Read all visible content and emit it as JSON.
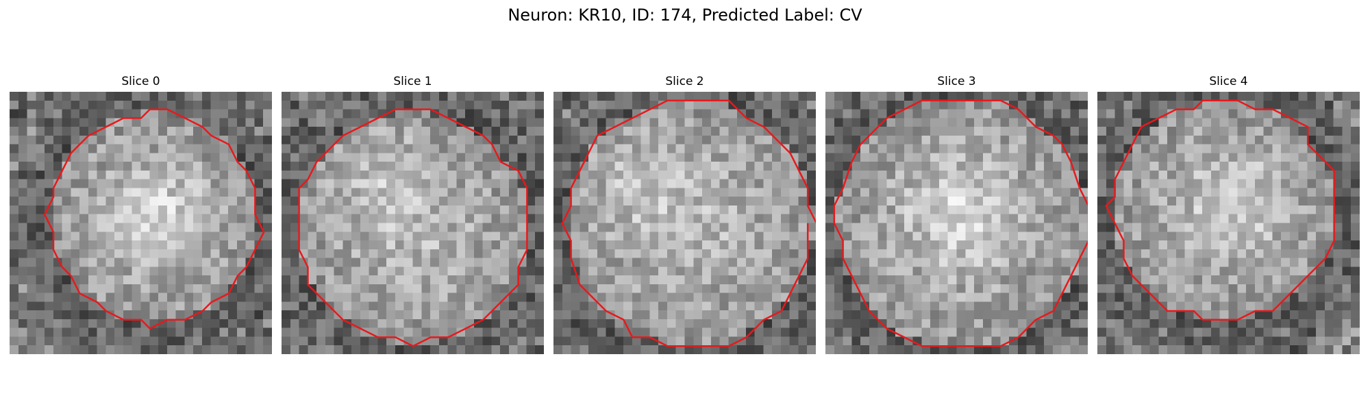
{
  "figure": {
    "title": "Neuron: KR10, ID: 174, Predicted Label: CV",
    "contour_color": "#e8191c",
    "image_colormap": "gray"
  },
  "panels": [
    {
      "title": "Slice 0",
      "seed": 11,
      "center": [
        0.55,
        0.48
      ],
      "radius": 0.4,
      "bright_blob": [
        0.55,
        0.45
      ]
    },
    {
      "title": "Slice 1",
      "seed": 23,
      "center": [
        0.5,
        0.52
      ],
      "radius": 0.44,
      "bright_blob": [
        0.35,
        0.3
      ]
    },
    {
      "title": "Slice 2",
      "seed": 37,
      "center": [
        0.52,
        0.5
      ],
      "radius": 0.47,
      "bright_blob": [
        0.3,
        0.35
      ]
    },
    {
      "title": "Slice 3",
      "seed": 41,
      "center": [
        0.52,
        0.5
      ],
      "radius": 0.48,
      "bright_blob": [
        0.5,
        0.45
      ]
    },
    {
      "title": "Slice 4",
      "seed": 53,
      "center": [
        0.48,
        0.45
      ],
      "radius": 0.42,
      "bright_blob": [
        0.55,
        0.4
      ]
    }
  ]
}
